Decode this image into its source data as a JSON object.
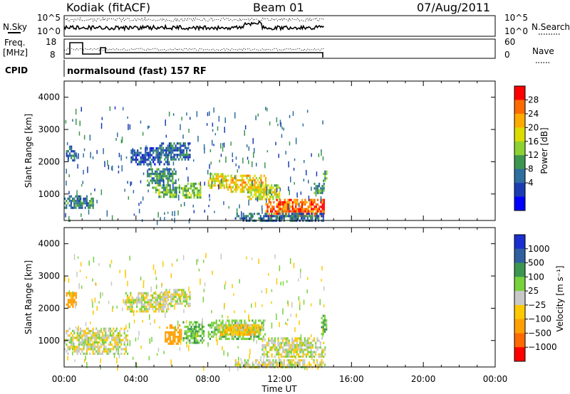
{
  "header": {
    "station": "Kodiak (fitACF)",
    "beam": "Beam 01",
    "date": "07/Aug/2011"
  },
  "side_labels": {
    "nsky": "N.Sky",
    "nsearch": "N.Search",
    "freq_line1": "Freq.",
    "freq_line2": "[MHz]",
    "nave": "Nave",
    "cpid": "CPID"
  },
  "cpid_text": "normalsound (fast) 157 RF",
  "noise_panel": {
    "left_ticks": [
      "10^5",
      "10^0"
    ],
    "right_ticks": [
      "10^5",
      "10^0"
    ]
  },
  "freq_panel": {
    "left_ticks": [
      "18",
      "8"
    ],
    "right_ticks": [
      "60",
      "0"
    ]
  },
  "time_axis": {
    "label": "Time UT",
    "ticks": [
      "00:00",
      "04:00",
      "08:00",
      "12:00",
      "16:00",
      "20:00",
      "00:00"
    ]
  },
  "colorbars": {
    "power": {
      "label": "Power [dB]",
      "ticks": [
        "28",
        "24",
        "20",
        "16",
        "12",
        "8",
        "4"
      ],
      "colors": [
        "#ff0000",
        "#ff6a00",
        "#ffaa00",
        "#dcdc00",
        "#8cd232",
        "#3c9650",
        "#2e6ea0",
        "#1c3cb4",
        "#0000ff"
      ]
    },
    "velocity": {
      "label": "Velocity [m s⁻¹]",
      "ticks": [
        "1000",
        "500",
        "100",
        "25",
        "−25",
        "−100",
        "−500",
        "−1000"
      ],
      "colors": [
        "#1a2fd0",
        "#3060a0",
        "#3c9650",
        "#78d23c",
        "#c8c8c8",
        "#ffc800",
        "#ffa000",
        "#ff6a00",
        "#ff0000"
      ]
    }
  },
  "chart_data": [
    {
      "type": "heatmap",
      "title": "Power",
      "ylabel": "Slant Range [km]",
      "xlabel": "Time UT",
      "xlim": [
        0,
        24
      ],
      "ylim": [
        180,
        4500
      ],
      "yticks": [
        1000,
        2000,
        3000,
        4000
      ],
      "colorbar": "Power [dB]",
      "regions": [
        {
          "t": [
            0.0,
            1.6
          ],
          "r": [
            560,
            960
          ],
          "value": 10
        },
        {
          "t": [
            0.1,
            0.7
          ],
          "r": [
            2050,
            2500
          ],
          "value": 8
        },
        {
          "t": [
            3.7,
            5.8
          ],
          "r": [
            1950,
            2450
          ],
          "value": 6
        },
        {
          "t": [
            5.3,
            7.0
          ],
          "r": [
            2100,
            2600
          ],
          "value": 8
        },
        {
          "t": [
            4.6,
            6.2
          ],
          "r": [
            1300,
            1800
          ],
          "value": 10
        },
        {
          "t": [
            4.9,
            6.4
          ],
          "r": [
            900,
            1300
          ],
          "value": 14
        },
        {
          "t": [
            6.5,
            7.6
          ],
          "r": [
            900,
            1350
          ],
          "value": 16
        },
        {
          "t": [
            8.0,
            9.0
          ],
          "r": [
            1200,
            1650
          ],
          "value": 20
        },
        {
          "t": [
            9.0,
            11.2
          ],
          "r": [
            1050,
            1600
          ],
          "value": 22
        },
        {
          "t": [
            10.2,
            12.0
          ],
          "r": [
            850,
            1300
          ],
          "value": 18
        },
        {
          "t": [
            11.2,
            14.5
          ],
          "r": [
            350,
            850
          ],
          "value": 28
        },
        {
          "t": [
            9.5,
            14.5
          ],
          "r": [
            200,
            420
          ],
          "value": 8
        },
        {
          "t": [
            13.9,
            14.5
          ],
          "r": [
            1000,
            1350
          ],
          "value": 12
        },
        {
          "t": [
            14.4,
            14.6
          ],
          "r": [
            1400,
            1800
          ],
          "value": 12
        }
      ]
    },
    {
      "type": "heatmap",
      "title": "Velocity",
      "ylabel": "Slant Range [km]",
      "xlabel": "Time UT",
      "xlim": [
        0,
        24
      ],
      "ylim": [
        180,
        4500
      ],
      "yticks": [
        1000,
        2000,
        3000,
        4000
      ],
      "colorbar": "Velocity [m s⁻¹]",
      "regions": [
        {
          "t": [
            0.0,
            3.5
          ],
          "r": [
            560,
            1400
          ],
          "value": 0
        },
        {
          "t": [
            0.1,
            0.7
          ],
          "r": [
            2050,
            2500
          ],
          "value": -300
        },
        {
          "t": [
            3.4,
            5.8
          ],
          "r": [
            1900,
            2500
          ],
          "value": 0
        },
        {
          "t": [
            5.3,
            7.0
          ],
          "r": [
            2100,
            2600
          ],
          "value": 0
        },
        {
          "t": [
            5.6,
            6.5
          ],
          "r": [
            900,
            1500
          ],
          "value": -300
        },
        {
          "t": [
            6.6,
            7.8
          ],
          "r": [
            900,
            1600
          ],
          "value": 80
        },
        {
          "t": [
            8.0,
            11.2
          ],
          "r": [
            1050,
            1650
          ],
          "value": 60
        },
        {
          "t": [
            8.5,
            11.0
          ],
          "r": [
            1200,
            1500
          ],
          "value": -80
        },
        {
          "t": [
            11.0,
            14.5
          ],
          "r": [
            500,
            1100
          ],
          "value": 0
        },
        {
          "t": [
            9.5,
            14.5
          ],
          "r": [
            200,
            420
          ],
          "value": 0
        },
        {
          "t": [
            14.3,
            14.6
          ],
          "r": [
            1200,
            1800
          ],
          "value": 80
        }
      ]
    }
  ]
}
